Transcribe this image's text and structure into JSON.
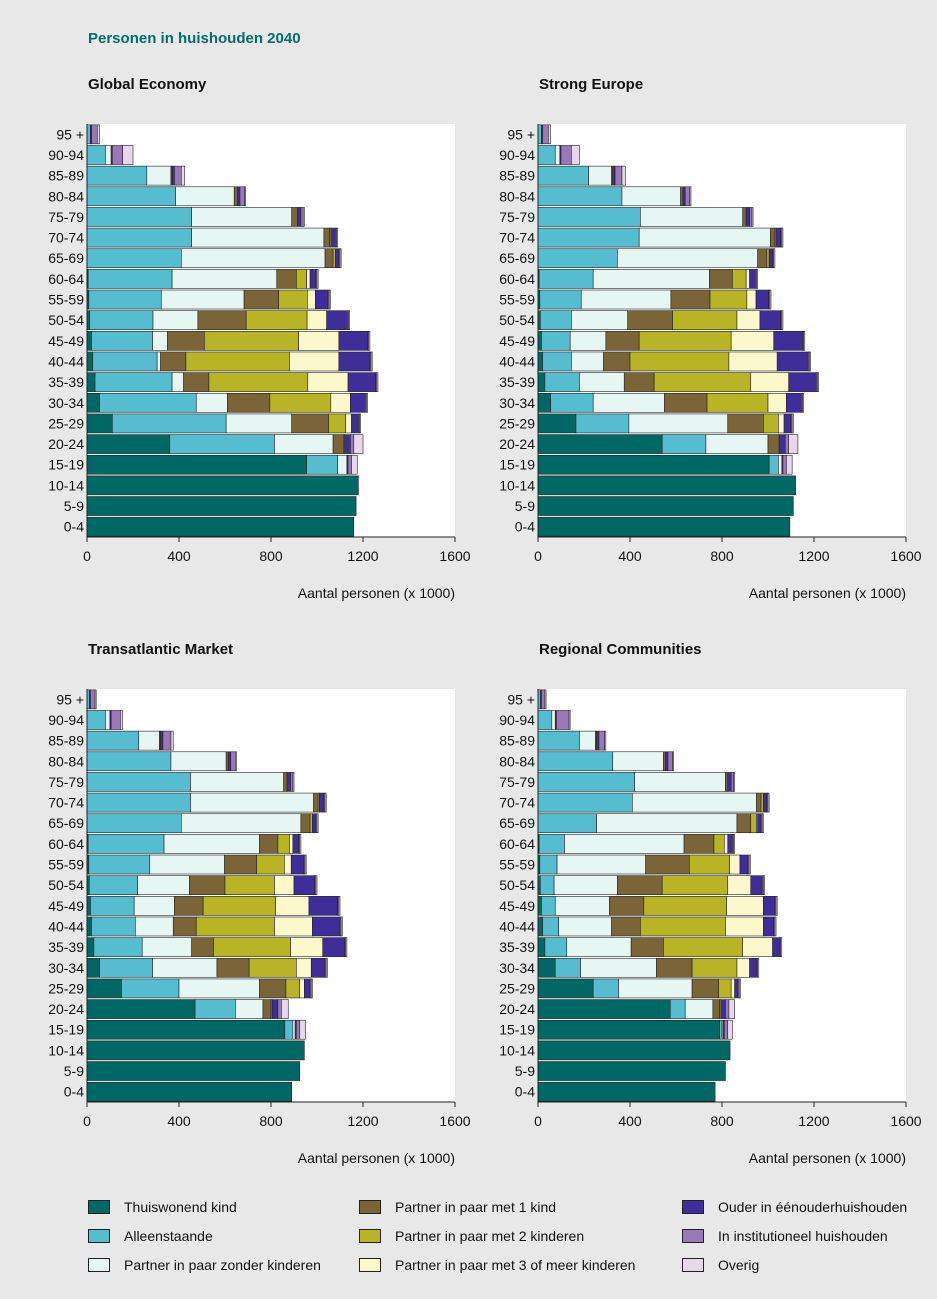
{
  "page_title": "Personen in huishouden 2040",
  "colors": {
    "Thuiswonend kind": "#006864",
    "Alleenstaande": "#56bdd1",
    "Partner in paar zonder kinderen": "#e6f6f2",
    "Partner in paar met 1 kind": "#7a6438",
    "Partner in paar met 2 kinderen": "#b9b326",
    "Partner in paar met 3 of meer kinderen": "#fbf8cc",
    "Ouder in ééneouderhuishouden": "#3f2e9a",
    "In institutioneel huishouden": "#9a78b7",
    "Overig": "#e8d6ea"
  },
  "legend": [
    "Thuiswonend kind",
    "Alleenstaande",
    "Partner in paar zonder kinderen",
    "Partner in paar met 1 kind",
    "Partner in paar met 2 kinderen",
    "Partner in paar met 3 of meer kinderen",
    "Ouder in ééneouderhuishouden",
    "In institutioneel huishouden",
    "Overig"
  ],
  "legend_labels": {
    "l0": "Thuiswonend kind",
    "l1": "Alleenstaande",
    "l2": "Partner in paar zonder kinderen",
    "l3": "Partner in paar met 1 kind",
    "l4": "Partner in paar met 2 kinderen",
    "l5": "Partner in paar met 3 of meer kinderen",
    "l6": "Ouder in éénouderhuishouden",
    "l7": "In institutioneel huishouden",
    "l8": "Overig"
  },
  "chart_data": [
    {
      "type": "bar",
      "orientation": "horizontal-stacked",
      "title": "Global Economy",
      "xlabel": "Aantal personen (x 1000)",
      "xlim": [
        0,
        1600
      ],
      "xticks": [
        0,
        400,
        800,
        1200,
        1600
      ],
      "categories": [
        "95 +",
        "90-94",
        "85-89",
        "80-84",
        "75-79",
        "70-74",
        "65-69",
        "60-64",
        "55-59",
        "50-54",
        "45-49",
        "40-44",
        "35-39",
        "30-34",
        "25-29",
        "20-24",
        "15-19",
        "10-14",
        "5-9",
        "0-4"
      ],
      "series": [
        {
          "name": "Thuiswonend kind",
          "values": [
            0,
            0,
            0,
            0,
            0,
            0,
            0,
            5,
            8,
            12,
            20,
            25,
            35,
            55,
            110,
            360,
            955,
            1180,
            1170,
            1160
          ]
        },
        {
          "name": "Alleenstaande",
          "values": [
            15,
            80,
            260,
            385,
            455,
            455,
            410,
            365,
            315,
            275,
            265,
            280,
            335,
            420,
            495,
            455,
            135,
            0,
            0,
            0
          ]
        },
        {
          "name": "Partner in paar zonder kinderen",
          "values": [
            0,
            25,
            105,
            255,
            435,
            575,
            625,
            455,
            360,
            195,
            65,
            15,
            50,
            135,
            285,
            255,
            40,
            0,
            0,
            0
          ]
        },
        {
          "name": "Partner in paar met 1 kind",
          "values": [
            0,
            0,
            5,
            15,
            25,
            25,
            35,
            85,
            150,
            210,
            160,
            110,
            110,
            185,
            160,
            45,
            0,
            0,
            0,
            0
          ]
        },
        {
          "name": "Partner in paar met 2 kinderen",
          "values": [
            0,
            0,
            0,
            0,
            0,
            5,
            10,
            45,
            125,
            265,
            410,
            450,
            430,
            265,
            75,
            5,
            0,
            0,
            0,
            0
          ]
        },
        {
          "name": "Partner in paar met 3 of meer kinderen",
          "values": [
            0,
            0,
            0,
            0,
            0,
            0,
            0,
            15,
            35,
            85,
            175,
            215,
            175,
            85,
            25,
            0,
            0,
            0,
            0,
            0
          ]
        },
        {
          "name": "Ouder in ééneouderhuishouden",
          "values": [
            5,
            5,
            10,
            10,
            15,
            20,
            15,
            25,
            55,
            90,
            125,
            135,
            120,
            65,
            30,
            25,
            5,
            0,
            0,
            0
          ]
        },
        {
          "name": "In institutioneel huishouden",
          "values": [
            25,
            45,
            30,
            20,
            10,
            5,
            5,
            5,
            5,
            5,
            5,
            5,
            5,
            5,
            5,
            15,
            15,
            0,
            0,
            0
          ]
        },
        {
          "name": "Overig",
          "values": [
            10,
            45,
            15,
            5,
            5,
            5,
            5,
            5,
            5,
            5,
            5,
            5,
            5,
            5,
            5,
            40,
            25,
            0,
            0,
            0
          ]
        }
      ]
    },
    {
      "type": "bar",
      "orientation": "horizontal-stacked",
      "title": "Strong Europe",
      "xlabel": "Aantal personen (x 1000)",
      "xlim": [
        0,
        1600
      ],
      "xticks": [
        0,
        400,
        800,
        1200,
        1600
      ],
      "categories": [
        "95 +",
        "90-94",
        "85-89",
        "80-84",
        "75-79",
        "70-74",
        "65-69",
        "60-64",
        "55-59",
        "50-54",
        "45-49",
        "40-44",
        "35-39",
        "30-34",
        "25-29",
        "20-24",
        "15-19",
        "10-14",
        "5-9",
        "0-4"
      ],
      "series": [
        {
          "name": "Thuiswonend kind",
          "values": [
            0,
            0,
            0,
            0,
            0,
            0,
            0,
            5,
            8,
            10,
            15,
            20,
            30,
            55,
            165,
            540,
            1005,
            1120,
            1110,
            1095
          ]
        },
        {
          "name": "Alleenstaande",
          "values": [
            15,
            75,
            220,
            365,
            445,
            440,
            345,
            235,
            180,
            135,
            125,
            125,
            150,
            185,
            230,
            190,
            40,
            0,
            0,
            0
          ]
        },
        {
          "name": "Partner in paar zonder kinderen",
          "values": [
            0,
            20,
            100,
            255,
            445,
            570,
            610,
            505,
            390,
            245,
            155,
            140,
            195,
            310,
            430,
            270,
            15,
            0,
            0,
            0
          ]
        },
        {
          "name": "Partner in paar met 1 kind",
          "values": [
            0,
            0,
            5,
            10,
            15,
            20,
            40,
            100,
            170,
            195,
            145,
            115,
            130,
            185,
            155,
            45,
            0,
            0,
            0,
            0
          ]
        },
        {
          "name": "Partner in paar met 2 kinderen",
          "values": [
            0,
            0,
            0,
            0,
            0,
            5,
            10,
            60,
            160,
            280,
            400,
            430,
            420,
            265,
            65,
            5,
            0,
            0,
            0,
            0
          ]
        },
        {
          "name": "Partner in paar met 3 of meer kinderen",
          "values": [
            0,
            0,
            0,
            0,
            0,
            0,
            0,
            15,
            40,
            100,
            185,
            210,
            165,
            80,
            25,
            0,
            0,
            0,
            0,
            0
          ]
        },
        {
          "name": "Ouder in ééneouderhuishouden",
          "values": [
            5,
            5,
            10,
            10,
            15,
            20,
            15,
            25,
            55,
            90,
            125,
            135,
            120,
            65,
            30,
            25,
            5,
            0,
            0,
            0
          ]
        },
        {
          "name": "In institutioneel huishouden",
          "values": [
            25,
            45,
            30,
            20,
            10,
            5,
            5,
            5,
            5,
            5,
            5,
            5,
            5,
            5,
            5,
            15,
            15,
            0,
            0,
            0
          ]
        },
        {
          "name": "Overig",
          "values": [
            10,
            35,
            15,
            5,
            5,
            5,
            5,
            5,
            5,
            5,
            5,
            5,
            5,
            5,
            5,
            40,
            25,
            0,
            0,
            0
          ]
        }
      ]
    },
    {
      "type": "bar",
      "orientation": "horizontal-stacked",
      "title": "Transatlantic Market",
      "xlabel": "Aantal personen (x 1000)",
      "xlim": [
        0,
        1600
      ],
      "xticks": [
        0,
        400,
        800,
        1200,
        1600
      ],
      "categories": [
        "95 +",
        "90-94",
        "85-89",
        "80-84",
        "75-79",
        "70-74",
        "65-69",
        "60-64",
        "55-59",
        "50-54",
        "45-49",
        "40-44",
        "35-39",
        "30-34",
        "25-29",
        "20-24",
        "15-19",
        "10-14",
        "5-9",
        "0-4"
      ],
      "series": [
        {
          "name": "Thuiswonend kind",
          "values": [
            0,
            0,
            0,
            0,
            0,
            0,
            0,
            5,
            8,
            10,
            15,
            20,
            30,
            55,
            150,
            470,
            860,
            945,
            925,
            890
          ]
        },
        {
          "name": "Alleenstaande",
          "values": [
            10,
            80,
            225,
            365,
            450,
            450,
            410,
            330,
            265,
            210,
            190,
            190,
            210,
            230,
            250,
            175,
            35,
            0,
            0,
            0
          ]
        },
        {
          "name": "Partner in paar zonder kinderen",
          "values": [
            0,
            20,
            90,
            240,
            405,
            535,
            520,
            415,
            325,
            225,
            175,
            165,
            215,
            280,
            350,
            120,
            10,
            0,
            0,
            0
          ]
        },
        {
          "name": "Partner in paar met 1 kind",
          "values": [
            0,
            0,
            5,
            10,
            15,
            20,
            40,
            80,
            140,
            155,
            125,
            100,
            95,
            140,
            115,
            35,
            0,
            0,
            0,
            0
          ]
        },
        {
          "name": "Partner in paar met 2 kinderen",
          "values": [
            0,
            0,
            0,
            0,
            0,
            5,
            10,
            50,
            120,
            215,
            315,
            340,
            335,
            205,
            60,
            5,
            0,
            0,
            0,
            0
          ]
        },
        {
          "name": "Partner in paar met 3 of meer kinderen",
          "values": [
            0,
            0,
            0,
            0,
            0,
            0,
            0,
            15,
            30,
            85,
            145,
            165,
            140,
            65,
            20,
            0,
            0,
            0,
            0,
            0
          ]
        },
        {
          "name": "Ouder in ééneouderhuishouden",
          "values": [
            5,
            5,
            10,
            10,
            15,
            20,
            15,
            25,
            55,
            90,
            125,
            120,
            95,
            60,
            25,
            25,
            5,
            0,
            0,
            0
          ]
        },
        {
          "name": "In institutioneel huishouden",
          "values": [
            20,
            40,
            35,
            20,
            10,
            5,
            5,
            5,
            5,
            5,
            5,
            5,
            5,
            5,
            5,
            15,
            15,
            0,
            0,
            0
          ]
        },
        {
          "name": "Overig",
          "values": [
            5,
            10,
            10,
            5,
            5,
            5,
            5,
            5,
            5,
            5,
            5,
            5,
            5,
            5,
            5,
            30,
            25,
            0,
            0,
            0
          ]
        }
      ]
    },
    {
      "type": "bar",
      "orientation": "horizontal-stacked",
      "title": "Regional Communities",
      "xlabel": "Aantal personen (x 1000)",
      "xlim": [
        0,
        1600
      ],
      "xticks": [
        0,
        400,
        800,
        1200,
        1600
      ],
      "categories": [
        "95 +",
        "90-94",
        "85-89",
        "80-84",
        "75-79",
        "70-74",
        "65-69",
        "60-64",
        "55-59",
        "50-54",
        "45-49",
        "40-44",
        "35-39",
        "30-34",
        "25-29",
        "20-24",
        "15-19",
        "10-14",
        "5-9",
        "0-4"
      ],
      "series": [
        {
          "name": "Thuiswonend kind",
          "values": [
            0,
            0,
            0,
            0,
            0,
            0,
            0,
            5,
            8,
            10,
            15,
            20,
            30,
            75,
            240,
            575,
            790,
            835,
            815,
            770
          ]
        },
        {
          "name": "Alleenstaande",
          "values": [
            10,
            60,
            180,
            325,
            420,
            410,
            255,
            110,
            75,
            60,
            60,
            70,
            95,
            110,
            110,
            65,
            10,
            0,
            0,
            0
          ]
        },
        {
          "name": "Partner in paar zonder kinderen",
          "values": [
            0,
            15,
            70,
            220,
            395,
            540,
            610,
            520,
            385,
            275,
            235,
            230,
            280,
            330,
            320,
            120,
            5,
            0,
            0,
            0
          ]
        },
        {
          "name": "Partner in paar met 1 kind",
          "values": [
            0,
            0,
            5,
            10,
            10,
            20,
            60,
            130,
            190,
            195,
            150,
            125,
            140,
            155,
            115,
            30,
            0,
            0,
            0,
            0
          ]
        },
        {
          "name": "Partner in paar met 2 kinderen",
          "values": [
            0,
            0,
            0,
            0,
            0,
            10,
            25,
            45,
            175,
            285,
            360,
            370,
            345,
            195,
            55,
            5,
            0,
            0,
            0,
            0
          ]
        },
        {
          "name": "Partner in paar met 3 of meer kinderen",
          "values": [
            0,
            0,
            0,
            0,
            0,
            0,
            5,
            15,
            45,
            100,
            160,
            165,
            130,
            55,
            15,
            0,
            0,
            0,
            0,
            0
          ]
        },
        {
          "name": "Ouder in ééneouderhuishouden",
          "values": [
            5,
            5,
            10,
            10,
            15,
            15,
            15,
            20,
            35,
            50,
            50,
            45,
            30,
            30,
            15,
            20,
            5,
            0,
            0,
            0
          ]
        },
        {
          "name": "In institutioneel huishouden",
          "values": [
            15,
            55,
            25,
            20,
            10,
            5,
            5,
            5,
            5,
            5,
            5,
            5,
            5,
            5,
            5,
            15,
            15,
            0,
            0,
            0
          ]
        },
        {
          "name": "Overig",
          "values": [
            5,
            5,
            5,
            5,
            5,
            5,
            5,
            5,
            5,
            5,
            5,
            5,
            5,
            5,
            5,
            25,
            20,
            0,
            0,
            0
          ]
        }
      ]
    }
  ]
}
